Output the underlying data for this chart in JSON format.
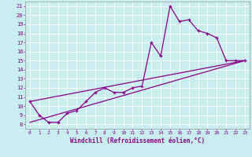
{
  "xlabel": "Windchill (Refroidissement éolien,°C)",
  "bg_color": "#c8eef0",
  "line_color": "#880088",
  "xlim": [
    -0.5,
    23.5
  ],
  "ylim": [
    7.5,
    21.5
  ],
  "xticks": [
    0,
    1,
    2,
    3,
    4,
    5,
    6,
    7,
    8,
    9,
    10,
    11,
    12,
    13,
    14,
    15,
    16,
    17,
    18,
    19,
    20,
    21,
    22,
    23
  ],
  "yticks": [
    8,
    9,
    10,
    11,
    12,
    13,
    14,
    15,
    16,
    17,
    18,
    19,
    20,
    21
  ],
  "line1_x": [
    0,
    1,
    2,
    3,
    4,
    5,
    6,
    7,
    8,
    9,
    10,
    11,
    12,
    13,
    14,
    15,
    16,
    17,
    18,
    19,
    20,
    21,
    22,
    23
  ],
  "line1_y": [
    10.5,
    9.0,
    8.2,
    8.2,
    9.2,
    9.5,
    10.5,
    11.5,
    12.0,
    11.5,
    11.5,
    12.0,
    12.2,
    17.0,
    15.5,
    21.0,
    19.3,
    19.5,
    18.3,
    18.0,
    17.5,
    15.0,
    15.0,
    15.0
  ],
  "line2_x": [
    0,
    23
  ],
  "line2_y": [
    8.2,
    15.0
  ],
  "line3_x": [
    0,
    23
  ],
  "line3_y": [
    10.5,
    15.0
  ]
}
